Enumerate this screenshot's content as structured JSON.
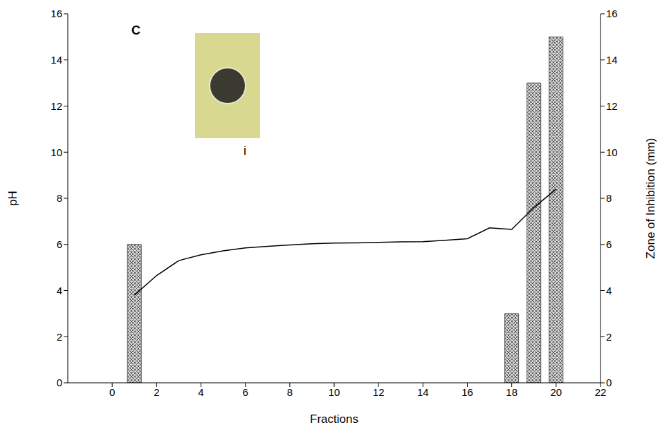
{
  "chart_data": {
    "type": "bar_line",
    "panel_label": "C",
    "annotations": [
      "i"
    ],
    "x_label": "Fractions",
    "y_label": "pH",
    "y2_label": "Zone of Inhibition (mm)",
    "x": [
      1,
      2,
      3,
      4,
      5,
      6,
      7,
      8,
      9,
      10,
      11,
      12,
      13,
      14,
      15,
      16,
      17,
      18,
      19,
      20
    ],
    "series": [
      {
        "type": "line",
        "color": "#000000",
        "values": [
          3.8,
          4.65,
          5.3,
          5.55,
          5.72,
          5.85,
          5.92,
          5.98,
          6.03,
          6.06,
          6.07,
          6.09,
          6.11,
          6.12,
          6.18,
          6.25,
          6.72,
          6.65,
          7.6,
          8.4
        ]
      },
      {
        "type": "bar",
        "axis": "y2",
        "color": "#555555",
        "values": [
          6,
          null,
          null,
          null,
          null,
          null,
          null,
          null,
          null,
          null,
          null,
          null,
          null,
          null,
          null,
          null,
          null,
          3,
          13,
          15
        ]
      }
    ],
    "xlim": [
      -2,
      22
    ],
    "xticks": [
      0,
      2,
      4,
      6,
      8,
      10,
      12,
      14,
      16,
      18,
      20,
      22
    ],
    "ylim": [
      0,
      16
    ],
    "yticks": [
      0,
      2,
      4,
      6,
      8,
      10,
      12,
      14,
      16
    ],
    "y2lim": [
      0,
      16
    ],
    "y2ticks": [
      0,
      2,
      4,
      6,
      8,
      10,
      12,
      14,
      16
    ]
  }
}
